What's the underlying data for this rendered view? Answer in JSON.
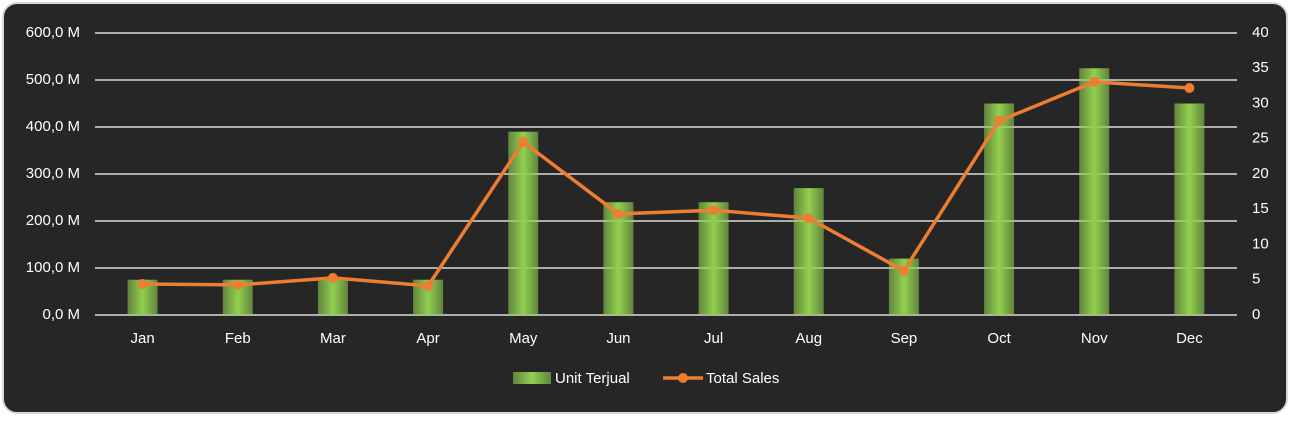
{
  "chart_data": {
    "type": "combo",
    "categories": [
      "Jan",
      "Feb",
      "Mar",
      "Apr",
      "May",
      "Jun",
      "Jul",
      "Aug",
      "Sep",
      "Oct",
      "Nov",
      "Dec"
    ],
    "series": [
      {
        "name": "Unit Terjual",
        "type": "bar",
        "axis": "y2",
        "color": "#92d050",
        "values": [
          5,
          5,
          5,
          5,
          26,
          16,
          16,
          18,
          8,
          30,
          35,
          30
        ]
      },
      {
        "name": "Total Sales",
        "type": "line",
        "color": "#ed7d31",
        "values": [
          66,
          64,
          79,
          62,
          368,
          215,
          223,
          206,
          94,
          413,
          496,
          483
        ]
      }
    ],
    "ylim": [
      0,
      600
    ],
    "yticks": [
      {
        "value": 0,
        "label": "0,0 M"
      },
      {
        "value": 100,
        "label": "100,0 M"
      },
      {
        "value": 200,
        "label": "200,0 M"
      },
      {
        "value": 300,
        "label": "300,0 M"
      },
      {
        "value": 400,
        "label": "400,0 M"
      },
      {
        "value": 500,
        "label": "500,0 M"
      },
      {
        "value": 600,
        "label": "600,0 M"
      }
    ],
    "y2lim": [
      0,
      40
    ],
    "y2ticks": [
      0,
      5,
      10,
      15,
      20,
      25,
      30,
      35,
      40
    ],
    "grid": true,
    "legend": "bottom"
  }
}
